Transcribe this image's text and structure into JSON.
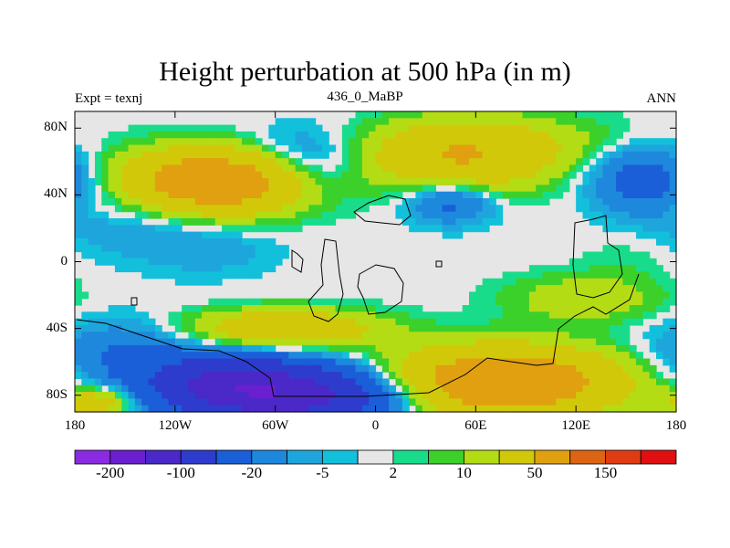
{
  "title": "Height perturbation at 500 hPa (in m)",
  "left_label": "Expt = texnj",
  "center_label": "436_0_MaBP",
  "right_label": "ANN",
  "map": {
    "projection": "cylindrical equidistant",
    "lon_range": [
      -180,
      180
    ],
    "lat_range": [
      -90,
      90
    ],
    "y_ticks": [
      {
        "value": 80,
        "label": "80N"
      },
      {
        "value": 40,
        "label": "40N"
      },
      {
        "value": 0,
        "label": "0"
      },
      {
        "value": -40,
        "label": "40S"
      },
      {
        "value": -80,
        "label": "80S"
      }
    ],
    "x_ticks": [
      {
        "value": -180,
        "label": "180"
      },
      {
        "value": -120,
        "label": "120W"
      },
      {
        "value": -60,
        "label": "60W"
      },
      {
        "value": 0,
        "label": "0"
      },
      {
        "value": 60,
        "label": "60E"
      },
      {
        "value": 120,
        "label": "120E"
      },
      {
        "value": 180,
        "label": "180"
      }
    ]
  },
  "colorbar": {
    "colors": [
      "#8a2be2",
      "#6a1fd0",
      "#4b28c8",
      "#2e3ccd",
      "#1a5fd8",
      "#1e88dc",
      "#1ea6dc",
      "#12c0dc",
      "#e6e6e6",
      "#19dc8a",
      "#3cd02a",
      "#b4dc14",
      "#d2c80a",
      "#e0a010",
      "#dc6414",
      "#e03c14",
      "#e01010"
    ],
    "labels": [
      {
        "boundary": 1,
        "text": "-200"
      },
      {
        "boundary": 3,
        "text": "-100"
      },
      {
        "boundary": 5,
        "text": "-20"
      },
      {
        "boundary": 7,
        "text": "-5"
      },
      {
        "boundary": 9,
        "text": "2"
      },
      {
        "boundary": 11,
        "text": "10"
      },
      {
        "boundary": 13,
        "text": "50"
      },
      {
        "boundary": 15,
        "text": "150"
      }
    ]
  },
  "anomaly_regions": [
    {
      "lon": -95,
      "lat": 48,
      "sx": 38,
      "sy": 13,
      "amp": 90
    },
    {
      "lon": 50,
      "lat": 62,
      "sx": 38,
      "sy": 14,
      "amp": 45
    },
    {
      "lon": 80,
      "lat": 72,
      "sx": 55,
      "sy": 12,
      "amp": 12
    },
    {
      "lon": -45,
      "lat": 58,
      "sx": 26,
      "sy": 14,
      "amp": -25
    },
    {
      "lon": 45,
      "lat": 36,
      "sx": 18,
      "sy": 9,
      "amp": -28
    },
    {
      "lon": 160,
      "lat": 50,
      "sx": 22,
      "sy": 14,
      "amp": -30
    },
    {
      "lon": -150,
      "lat": 28,
      "sx": 34,
      "sy": 16,
      "amp": -10
    },
    {
      "lon": -100,
      "lat": 8,
      "sx": 30,
      "sy": 12,
      "amp": -8
    },
    {
      "lon": -150,
      "lat": -55,
      "sx": 32,
      "sy": 14,
      "amp": -22
    },
    {
      "lon": -55,
      "lat": -80,
      "sx": 45,
      "sy": 12,
      "amp": -130
    },
    {
      "lon": -90,
      "lat": -70,
      "sx": 30,
      "sy": 10,
      "amp": -60
    },
    {
      "lon": -55,
      "lat": -40,
      "sx": 40,
      "sy": 8,
      "amp": 40
    },
    {
      "lon": 75,
      "lat": -72,
      "sx": 48,
      "sy": 14,
      "amp": 90
    },
    {
      "lon": 125,
      "lat": -22,
      "sx": 32,
      "sy": 10,
      "amp": 18
    },
    {
      "lon": 150,
      "lat": 2,
      "sx": 18,
      "sy": 10,
      "amp": 4
    },
    {
      "lon": -165,
      "lat": -84,
      "sx": 16,
      "sy": 6,
      "amp": 35
    },
    {
      "lon": -170,
      "lat": 30,
      "sx": 14,
      "sy": 6,
      "amp": 4
    }
  ]
}
